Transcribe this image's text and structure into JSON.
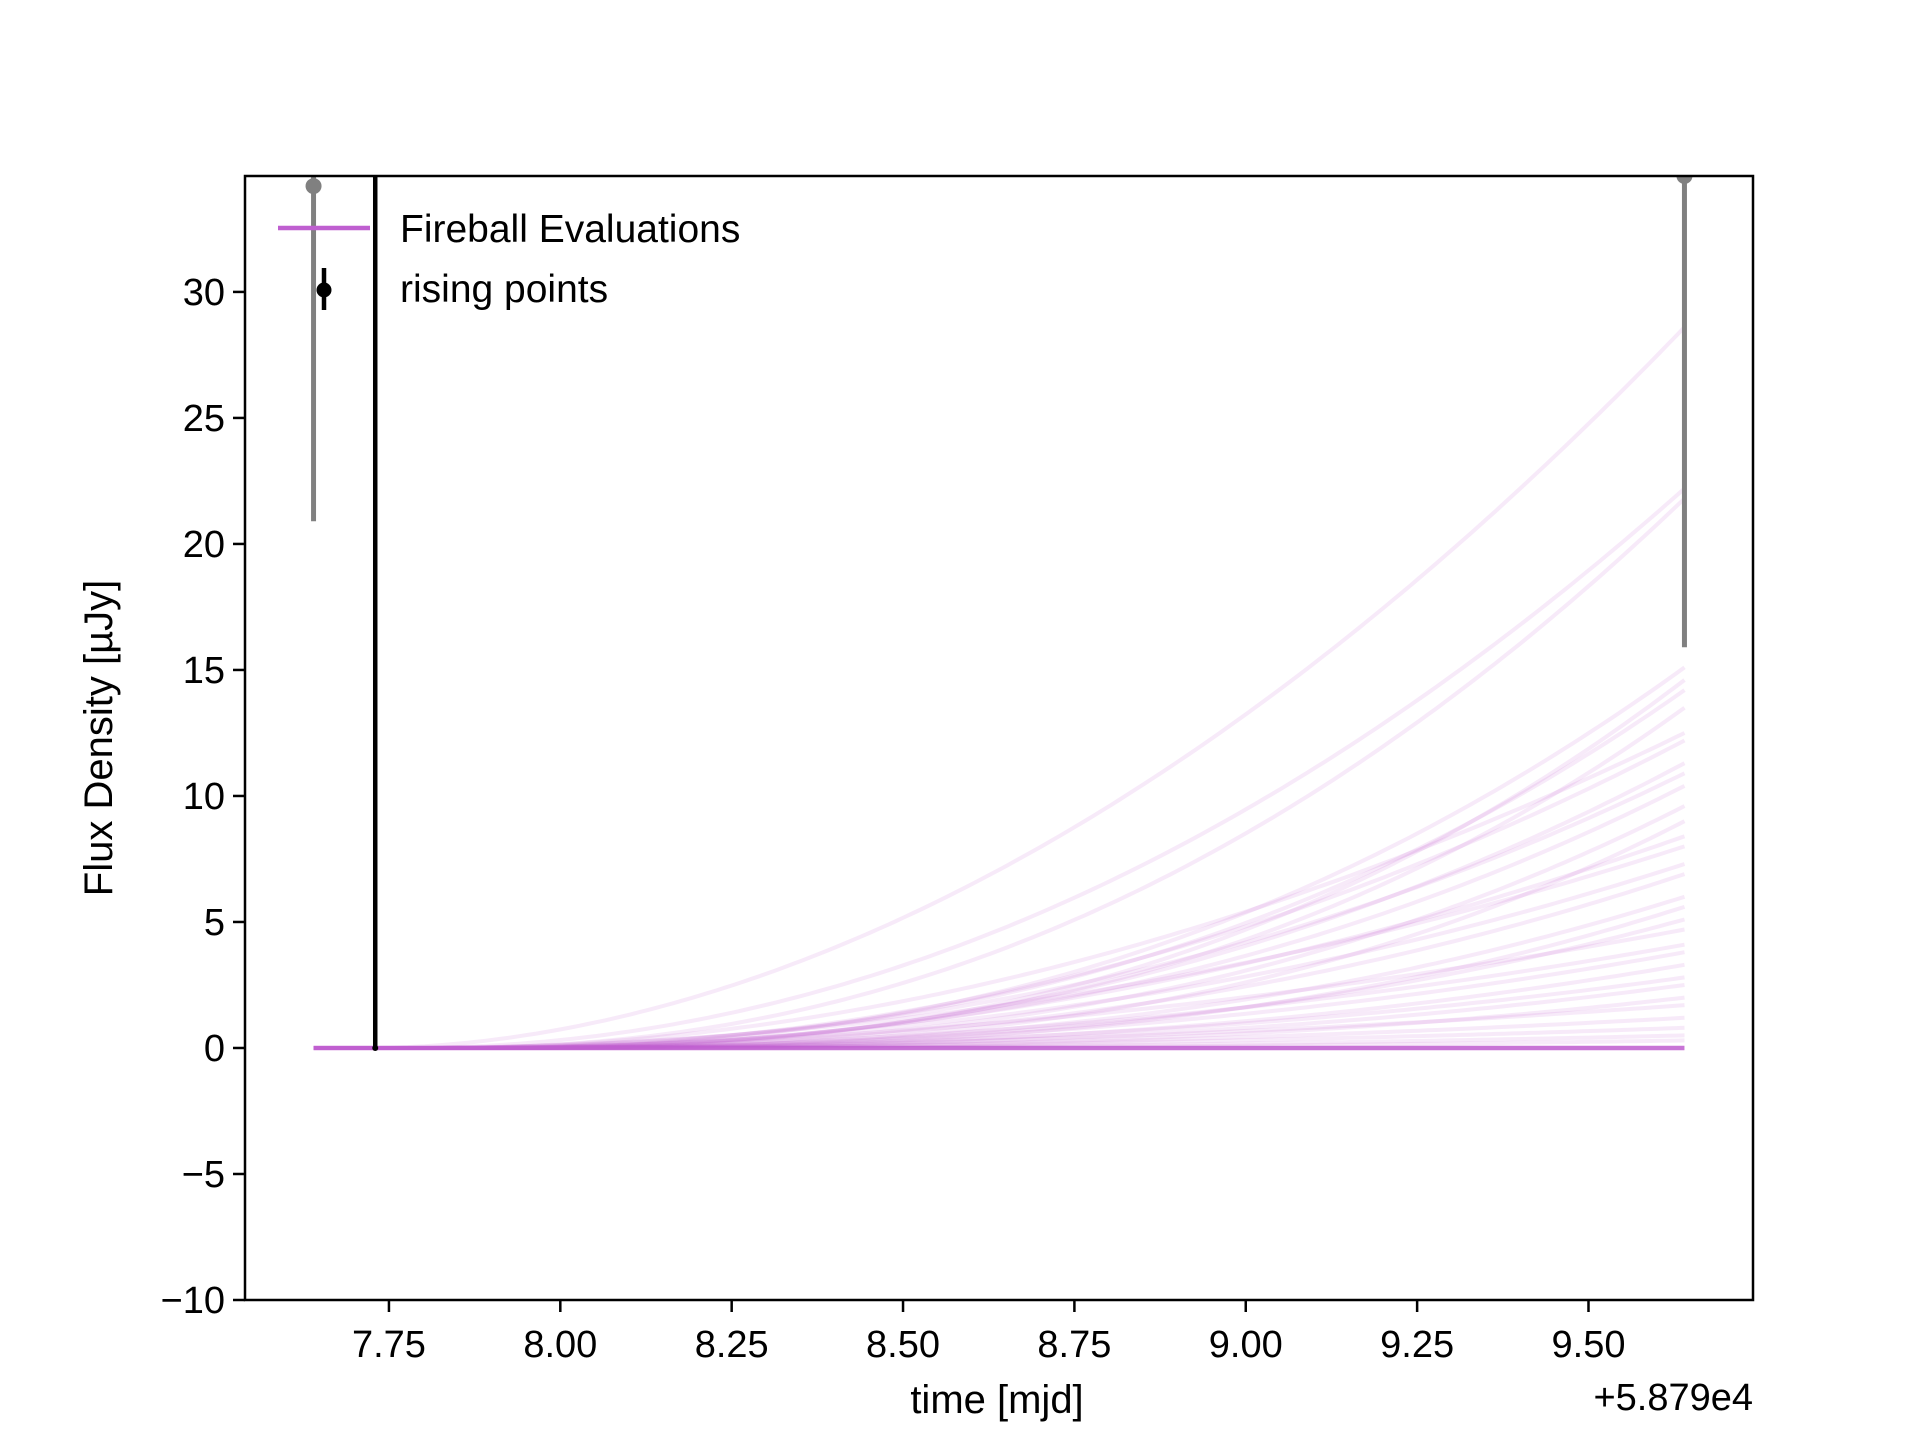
{
  "chart_data": {
    "type": "line",
    "xlabel": "time [mjd]",
    "ylabel": "Flux Density [µJy]",
    "x_offset_label": "+5.879e4",
    "xlim": [
      7.54,
      9.74
    ],
    "ylim": [
      -10,
      34.6
    ],
    "x_ticks": [
      7.75,
      8.0,
      8.25,
      8.5,
      8.75,
      9.0,
      9.25,
      9.5
    ],
    "x_tick_labels": [
      "7.75",
      "8.00",
      "8.25",
      "8.50",
      "8.75",
      "9.00",
      "9.25",
      "9.50"
    ],
    "y_ticks": [
      -10,
      -5,
      0,
      5,
      10,
      15,
      20,
      25,
      30
    ],
    "y_tick_labels": [
      "−10",
      "−5",
      "0",
      "5",
      "10",
      "15",
      "20",
      "25",
      "30"
    ],
    "grid": false,
    "legend": {
      "placement": "upper-left",
      "entries": [
        "Fireball Evaluations",
        "rising points"
      ]
    },
    "colors": {
      "fireball": "#bf5fd0",
      "rising_points": "#000000",
      "other_points": "#808080"
    },
    "fireball_evaluations": {
      "x_start": 7.64,
      "x_end": 9.64,
      "t0_range": [
        7.72,
        7.95
      ],
      "end_values": [
        28.6,
        22.2,
        21.8,
        15.1,
        14.6,
        14.2,
        13.5,
        12.5,
        12.2,
        11.3,
        10.9,
        10.4,
        9.6,
        9.0,
        8.4,
        8.0,
        7.3,
        6.9,
        6.0,
        5.6,
        5.1,
        4.7,
        4.1,
        3.8,
        3.3,
        2.8,
        2.5,
        2.0,
        1.7,
        1.2,
        0.8,
        0.5,
        0.3,
        0.0
      ]
    },
    "rising_points": [
      {
        "x": 7.73,
        "y": 0.0,
        "yerr_low": 0.0,
        "yerr_high": 1000
      }
    ],
    "other_points": [
      {
        "x": 7.64,
        "y": 34.2,
        "y_low": 20.9,
        "y_high": 1000
      },
      {
        "x": 9.64,
        "y": 34.6,
        "y_low": 15.9,
        "y_high": 1000
      }
    ]
  }
}
